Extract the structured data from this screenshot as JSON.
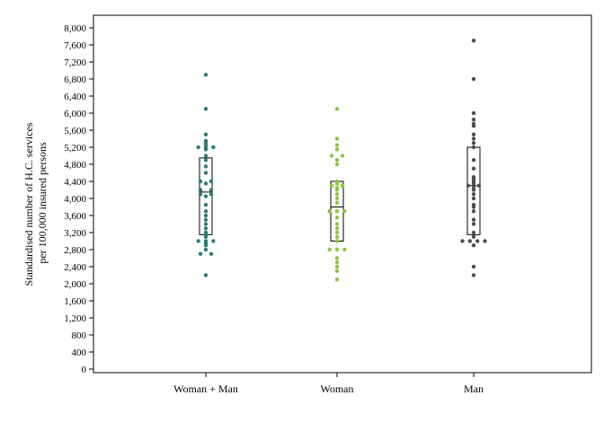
{
  "chart_data": {
    "type": "scatter",
    "subtype": "strip-plot-with-boxes",
    "title": "",
    "xlabel": "",
    "ylabel": [
      "Standardised number of H.C. services",
      "per 100,000 insured persons"
    ],
    "ylim": [
      0,
      8200
    ],
    "yticks": [
      {
        "value": 0,
        "label": "0"
      },
      {
        "value": 400,
        "label": "400"
      },
      {
        "value": 800,
        "label": "800"
      },
      {
        "value": 1200,
        "label": "1,200"
      },
      {
        "value": 1600,
        "label": "1,600"
      },
      {
        "value": 2000,
        "label": "2,000"
      },
      {
        "value": 2400,
        "label": "2,400"
      },
      {
        "value": 2800,
        "label": "2,800"
      },
      {
        "value": 3200,
        "label": "3,200"
      },
      {
        "value": 3600,
        "label": "3,600"
      },
      {
        "value": 4000,
        "label": "4,000"
      },
      {
        "value": 4400,
        "label": "4,400"
      },
      {
        "value": 4800,
        "label": "4,800"
      },
      {
        "value": 5200,
        "label": "5,200"
      },
      {
        "value": 5600,
        "label": "5,600"
      },
      {
        "value": 6000,
        "label": "6,000"
      },
      {
        "value": 6400,
        "label": "6,400"
      },
      {
        "value": 6800,
        "label": "6,800"
      },
      {
        "value": 7200,
        "label": "7,200"
      },
      {
        "value": 7600,
        "label": "7,600"
      },
      {
        "value": 8000,
        "label": "8,000"
      }
    ],
    "grid": false,
    "legend": "none",
    "categories": [
      "Woman + Man",
      "Woman",
      "Man"
    ],
    "series": [
      {
        "category": "Woman + Man",
        "color": "#2a7b76",
        "box": {
          "q1": 3150,
          "median": 4150,
          "q3": 4950
        },
        "values": [
          6900,
          6100,
          5500,
          5350,
          5300,
          5250,
          5200,
          5200,
          5200,
          5150,
          5000,
          4900,
          4750,
          4600,
          4400,
          4400,
          4350,
          4200,
          4200,
          4100,
          4100,
          4050,
          3850,
          3700,
          3600,
          3500,
          3400,
          3300,
          3200,
          3150,
          3100,
          3000,
          3000,
          3000,
          2950,
          2900,
          2800,
          2700,
          2700,
          2200
        ]
      },
      {
        "category": "Woman",
        "color": "#8bc53f",
        "box": {
          "q1": 3000,
          "median": 3800,
          "q3": 4400
        },
        "values": [
          6100,
          5400,
          5250,
          5150,
          5000,
          5000,
          4900,
          4800,
          4400,
          4350,
          4300,
          4300,
          4250,
          4200,
          4100,
          4000,
          3900,
          3700,
          3700,
          3700,
          3550,
          3400,
          3300,
          3200,
          3100,
          3000,
          2800,
          2800,
          2800,
          2600,
          2500,
          2400,
          2300,
          2100
        ]
      },
      {
        "category": "Man",
        "color": "#4d4d4d",
        "box": {
          "q1": 3150,
          "median": 4300,
          "q3": 5200
        },
        "values": [
          7700,
          6800,
          6000,
          5850,
          5750,
          5700,
          5500,
          5400,
          5300,
          5200,
          4900,
          4700,
          4500,
          4450,
          4400,
          4350,
          4300,
          4300,
          4250,
          4200,
          4100,
          4000,
          3850,
          3800,
          3700,
          3500,
          3400,
          3200,
          3100,
          3000,
          3000,
          3000,
          3000,
          2900,
          2400,
          2200
        ]
      }
    ]
  }
}
